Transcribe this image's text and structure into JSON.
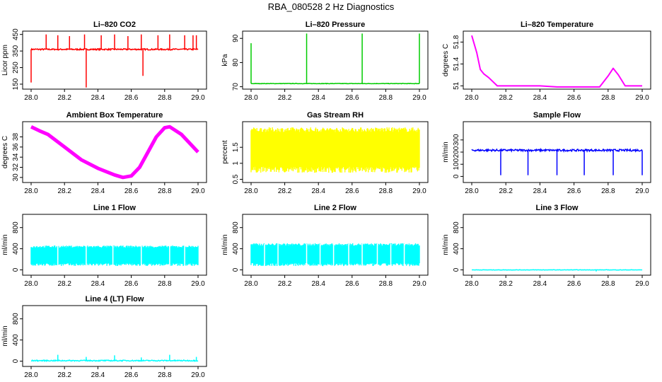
{
  "figure_title": "RBA_080528  2 Hz Diagnostics",
  "chart_data": [
    {
      "id": "co2",
      "type": "line",
      "title": "Li–820 CO2",
      "ylabel": "Licor ppm",
      "color": "#ff0000",
      "xlim": [
        28.0,
        29.0
      ],
      "ylim": [
        120,
        470
      ],
      "x_ticks": [
        "28.0",
        "28.2",
        "28.4",
        "28.6",
        "28.8",
        "29.0"
      ],
      "y_ticks": [
        150,
        250,
        350,
        450
      ],
      "baseline": 360,
      "noise": 4,
      "spikes": [
        [
          28.0,
          160
        ],
        [
          28.09,
          450
        ],
        [
          28.16,
          445
        ],
        [
          28.23,
          440
        ],
        [
          28.33,
          130
        ],
        [
          28.32,
          450
        ],
        [
          28.42,
          445
        ],
        [
          28.5,
          450
        ],
        [
          28.58,
          440
        ],
        [
          28.66,
          450
        ],
        [
          28.67,
          200
        ],
        [
          28.76,
          445
        ],
        [
          28.83,
          450
        ],
        [
          28.92,
          445
        ],
        [
          28.97,
          445
        ],
        [
          28.99,
          445
        ]
      ]
    },
    {
      "id": "pressure",
      "type": "line",
      "title": "Li–820 Pressure",
      "ylabel": "kPa",
      "color": "#00cc00",
      "xlim": [
        28.0,
        29.0
      ],
      "ylim": [
        69,
        93
      ],
      "x_ticks": [
        "28.0",
        "28.2",
        "28.4",
        "28.6",
        "28.8",
        "29.0"
      ],
      "y_ticks": [
        70,
        80,
        90
      ],
      "baseline": 71.3,
      "noise": 0.1,
      "spikes": [
        [
          28.0,
          88
        ],
        [
          28.33,
          92
        ],
        [
          28.66,
          92
        ],
        [
          29.0,
          92
        ]
      ]
    },
    {
      "id": "temperature",
      "type": "line",
      "title": "Li–820 Temperature",
      "ylabel": "degrees C",
      "color": "#ff00ff",
      "xlim": [
        28.0,
        29.0
      ],
      "ylim": [
        50.94,
        52.0
      ],
      "x_ticks": [
        "28.0",
        "28.2",
        "28.4",
        "28.6",
        "28.8",
        "29.0"
      ],
      "y_ticks": [
        51.0,
        51.4,
        51.8
      ],
      "points": [
        [
          28.0,
          51.92
        ],
        [
          28.03,
          51.6
        ],
        [
          28.05,
          51.3
        ],
        [
          28.07,
          51.22
        ],
        [
          28.1,
          51.15
        ],
        [
          28.15,
          51.0
        ],
        [
          28.2,
          51.0
        ],
        [
          28.4,
          51.0
        ],
        [
          28.5,
          50.98
        ],
        [
          28.6,
          50.98
        ],
        [
          28.75,
          50.98
        ],
        [
          28.8,
          51.18
        ],
        [
          28.83,
          51.32
        ],
        [
          28.86,
          51.2
        ],
        [
          28.9,
          51.0
        ],
        [
          29.0,
          51.0
        ]
      ]
    },
    {
      "id": "ambient",
      "type": "line",
      "title": "Ambient Box Temperature",
      "ylabel": "degrees C",
      "color": "#ff00ff",
      "xlim": [
        28.0,
        29.0
      ],
      "ylim": [
        29.0,
        41.0
      ],
      "x_ticks": [
        "28.0",
        "28.2",
        "28.4",
        "28.6",
        "28.8",
        "29.0"
      ],
      "y_ticks": [
        30,
        32,
        34,
        36,
        38
      ],
      "points": [
        [
          28.0,
          40.0
        ],
        [
          28.05,
          39.2
        ],
        [
          28.1,
          38.5
        ],
        [
          28.2,
          36.0
        ],
        [
          28.3,
          33.5
        ],
        [
          28.4,
          31.8
        ],
        [
          28.5,
          30.5
        ],
        [
          28.55,
          30.0
        ],
        [
          28.6,
          30.3
        ],
        [
          28.65,
          32.0
        ],
        [
          28.7,
          35.0
        ],
        [
          28.75,
          38.0
        ],
        [
          28.8,
          39.8
        ],
        [
          28.83,
          40.0
        ],
        [
          28.9,
          38.5
        ],
        [
          29.0,
          35.0
        ]
      ],
      "band": 0.5
    },
    {
      "id": "rh",
      "type": "band",
      "title": "Gas Stream RH",
      "ylabel": "percent",
      "color": "#ffff00",
      "xlim": [
        28.0,
        29.0
      ],
      "ylim": [
        0.4,
        2.3
      ],
      "x_ticks": [
        "28.0",
        "28.2",
        "28.4",
        "28.6",
        "28.8",
        "29.0"
      ],
      "y_ticks": [
        0.5,
        1.0,
        1.5
      ],
      "low": 0.8,
      "high": 2.05
    },
    {
      "id": "sample",
      "type": "line",
      "title": "Sample Flow",
      "ylabel": "ml/min",
      "color": "#0000ff",
      "xlim": [
        28.0,
        29.0
      ],
      "ylim": [
        -50,
        450
      ],
      "x_ticks": [
        "28.0",
        "28.2",
        "28.4",
        "28.6",
        "28.8",
        "29.0"
      ],
      "y_ticks": [
        0,
        100,
        200,
        300
      ],
      "baseline": 215,
      "noise": 8,
      "spikes": [
        [
          28.17,
          10
        ],
        [
          28.33,
          10
        ],
        [
          28.5,
          10
        ],
        [
          28.66,
          10
        ],
        [
          28.83,
          10
        ],
        [
          29.0,
          10
        ]
      ]
    },
    {
      "id": "line1",
      "type": "band",
      "title": "Line 1 Flow",
      "ylabel": "ml/min",
      "color": "#00ffff",
      "xlim": [
        28.0,
        29.0
      ],
      "ylim": [
        -100,
        1050
      ],
      "x_ticks": [
        "28.0",
        "28.2",
        "28.4",
        "28.6",
        "28.8",
        "29.0"
      ],
      "y_ticks": [
        0,
        400,
        800
      ],
      "low": 100,
      "high": 440,
      "gaps": [
        28.16,
        28.33,
        28.49,
        28.66,
        28.83,
        28.92
      ]
    },
    {
      "id": "line2",
      "type": "band",
      "title": "Line 2 Flow",
      "ylabel": "ml/min",
      "color": "#00ffff",
      "xlim": [
        28.0,
        29.0
      ],
      "ylim": [
        -100,
        1050
      ],
      "x_ticks": [
        "28.0",
        "28.2",
        "28.4",
        "28.6",
        "28.8",
        "29.0"
      ],
      "y_ticks": [
        0,
        400,
        800
      ],
      "low": 100,
      "high": 480,
      "gaps": [
        28.08,
        28.16,
        28.33,
        28.41,
        28.49,
        28.58,
        28.66,
        28.75,
        28.83,
        28.91
      ]
    },
    {
      "id": "line3",
      "type": "line",
      "title": "Line 3 Flow",
      "ylabel": "ml/min",
      "color": "#00ffff",
      "xlim": [
        28.0,
        29.0
      ],
      "ylim": [
        -100,
        1050
      ],
      "x_ticks": [
        "28.0",
        "28.2",
        "28.4",
        "28.6",
        "28.8",
        "29.0"
      ],
      "y_ticks": [
        0,
        400,
        800
      ],
      "baseline": 0,
      "noise": 3,
      "spikes": [
        [
          28.73,
          -30
        ]
      ]
    },
    {
      "id": "line4",
      "type": "line",
      "title": "Line 4 (LT) Flow",
      "ylabel": "ml/min",
      "color": "#00ffff",
      "xlim": [
        28.0,
        29.0
      ],
      "ylim": [
        -100,
        1050
      ],
      "x_ticks": [
        "28.0",
        "28.2",
        "28.4",
        "28.6",
        "28.8",
        "29.0"
      ],
      "y_ticks": [
        0,
        400,
        800
      ],
      "baseline": 10,
      "noise": 10,
      "spikes": [
        [
          28.16,
          120
        ],
        [
          28.33,
          80
        ],
        [
          28.5,
          110
        ],
        [
          28.66,
          70
        ],
        [
          28.83,
          120
        ],
        [
          28.99,
          80
        ]
      ]
    }
  ]
}
